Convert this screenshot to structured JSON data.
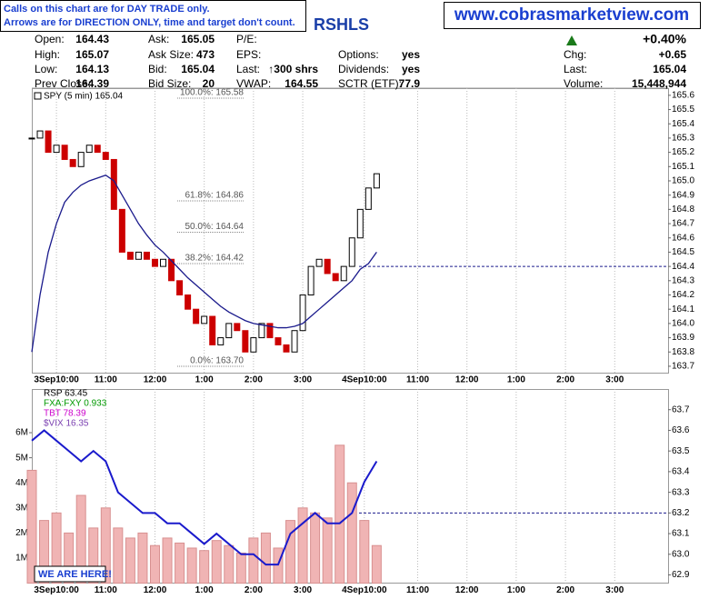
{
  "header": {
    "notice": [
      "Calls on this chart are for DAY TRADE only.",
      "Arrows are for DIRECTION ONLY, time and target don't count."
    ],
    "website": "www.cobrasmarketview.com",
    "title": "RSHLS",
    "change_pct": "+0.40%",
    "columns": [
      [
        [
          "Open:",
          "164.43"
        ],
        [
          "High:",
          "165.07"
        ],
        [
          "Low:",
          "164.13"
        ],
        [
          "Prev Close:",
          "164.39"
        ]
      ],
      [
        [
          "Ask:",
          "165.05"
        ],
        [
          "Ask Size:",
          "473"
        ],
        [
          "Bid:",
          "165.04"
        ],
        [
          "Bid Size:",
          "20"
        ]
      ],
      [
        [
          "P/E:"
        ],
        [
          "EPS:"
        ],
        [
          "Last:",
          "↑300 shrs"
        ],
        [
          "VWAP:",
          "164.55"
        ]
      ],
      [
        null,
        [
          "Options:",
          "yes"
        ],
        [
          "Dividends:",
          "yes"
        ],
        [
          "SCTR (ETF):",
          "77.9"
        ]
      ],
      [
        null,
        [
          "Chg:",
          "+0.65"
        ],
        [
          "Last:",
          "165.04"
        ],
        [
          "Volume:",
          "15,448,944"
        ]
      ]
    ]
  },
  "chart_data": [
    {
      "type": "candlestick",
      "legend": "SPY (5 min) 165.04",
      "x": [
        0,
        2,
        4,
        6,
        8,
        10,
        12,
        14,
        16,
        18,
        20,
        22,
        24,
        26,
        28,
        30,
        32,
        34,
        36,
        38,
        40,
        42,
        44,
        46,
        48,
        50,
        52,
        54,
        56,
        58,
        60,
        62,
        64,
        66,
        68,
        70,
        72,
        74,
        76,
        78,
        80,
        82,
        84
      ],
      "values": [
        165.3,
        165.35,
        165.2,
        165.25,
        165.15,
        165.1,
        165.2,
        165.25,
        165.2,
        165.15,
        164.8,
        164.5,
        164.45,
        164.5,
        164.45,
        164.4,
        164.45,
        164.3,
        164.2,
        164.1,
        164.0,
        164.05,
        163.85,
        163.9,
        164.0,
        163.95,
        163.8,
        163.9,
        164.0,
        163.9,
        163.85,
        163.8,
        163.95,
        164.2,
        164.4,
        164.45,
        164.35,
        164.3,
        164.4,
        164.6,
        164.8,
        164.95,
        165.05
      ],
      "up_color": "#000000",
      "down_color": "#cc0000",
      "moving_average": {
        "color": "#1a1a8c",
        "values": [
          163.8,
          164.2,
          164.5,
          164.7,
          164.85,
          164.92,
          164.97,
          165.0,
          165.02,
          165.04,
          165.0,
          164.9,
          164.8,
          164.7,
          164.62,
          164.55,
          164.5,
          164.44,
          164.38,
          164.32,
          164.27,
          164.22,
          164.17,
          164.12,
          164.08,
          164.05,
          164.02,
          164.0,
          163.99,
          163.98,
          163.97,
          163.97,
          163.98,
          164.0,
          164.05,
          164.1,
          164.15,
          164.2,
          164.25,
          164.3,
          164.38,
          164.42,
          164.5
        ]
      },
      "retracements": [
        {
          "value": 165.58,
          "label": "100.0%: 165.58"
        },
        {
          "value": 164.86,
          "label": "61.8%: 164.86"
        },
        {
          "value": 164.64,
          "label": "50.0%: 164.64"
        },
        {
          "value": 164.42,
          "label": "38.2%: 164.42"
        },
        {
          "value": 163.7,
          "label": "0.0%: 163.70"
        }
      ],
      "reference_line": 164.4,
      "reference_color": "#1a1a8c",
      "xlim": [
        0,
        155
      ],
      "ylim": [
        163.655,
        165.65
      ],
      "yticks": [
        163.7,
        163.8,
        163.9,
        {
          "value": 164.0,
          "label": "164.0"
        },
        164.1,
        164.2,
        164.3,
        164.4,
        164.5,
        164.6,
        164.7,
        164.8,
        164.9,
        {
          "value": 165.0,
          "label": "165.0"
        },
        165.1,
        165.2,
        165.3,
        165.4,
        165.5,
        165.6
      ],
      "xticks": [
        {
          "value": 6,
          "label": "3Sep10:00"
        },
        {
          "value": 18,
          "label": "11:00"
        },
        {
          "value": 30,
          "label": "12:00"
        },
        {
          "value": 42,
          "label": "1:00"
        },
        {
          "value": 54,
          "label": "2:00"
        },
        {
          "value": 66,
          "label": "3:00"
        },
        {
          "value": 81,
          "label": "4Sep10:00"
        },
        {
          "value": 94,
          "label": "11:00"
        },
        {
          "value": 106,
          "label": "12:00"
        },
        {
          "value": 118,
          "label": "1:00"
        },
        {
          "value": 130,
          "label": "2:00"
        },
        {
          "value": 142,
          "label": "3:00"
        }
      ]
    },
    {
      "type": "line",
      "series": [
        {
          "name": "RSP 63.45",
          "color": "#1a1acc",
          "axis": "y2",
          "values": [
            63.55,
            63.6,
            63.55,
            63.5,
            63.45,
            63.5,
            63.45,
            63.3,
            63.25,
            63.2,
            63.2,
            63.15,
            63.15,
            63.1,
            63.05,
            63.1,
            63.05,
            63.0,
            63.0,
            62.95,
            62.95,
            63.1,
            63.15,
            63.2,
            63.15,
            63.15,
            63.2,
            63.35,
            63.45
          ]
        }
      ],
      "overlays": [
        {
          "name": "FXA:FXY 0.933",
          "color": "#009900"
        },
        {
          "name": "TBT 78.39",
          "color": "#cc00cc"
        },
        {
          "name": "$VIX 16.35",
          "color": "#7a3fb0"
        }
      ],
      "x": [
        0,
        3,
        6,
        9,
        12,
        15,
        18,
        21,
        24,
        27,
        30,
        33,
        36,
        39,
        42,
        45,
        48,
        51,
        54,
        57,
        60,
        63,
        66,
        69,
        72,
        75,
        78,
        81,
        84
      ],
      "volume": {
        "color": "#f0b4b4",
        "values": [
          4500000,
          2500000,
          2800000,
          2000000,
          3500000,
          2200000,
          3000000,
          2200000,
          1800000,
          2000000,
          1500000,
          1800000,
          1600000,
          1400000,
          1300000,
          1700000,
          1500000,
          1200000,
          1800000,
          2000000,
          1400000,
          2500000,
          3000000,
          2800000,
          2600000,
          5500000,
          4000000,
          2500000,
          1500000
        ]
      },
      "annotation": "WE ARE HERE!",
      "reference_line": 63.2,
      "reference_color": "#1a1a8c",
      "xlim": [
        0,
        155
      ],
      "ylim": [
        0,
        7740000
      ],
      "y2lim": [
        62.86,
        63.8
      ],
      "yticks": [
        {
          "value": 1000000,
          "label": "1M"
        },
        {
          "value": 2000000,
          "label": "2M"
        },
        {
          "value": 3000000,
          "label": "3M"
        },
        {
          "value": 4000000,
          "label": "4M"
        },
        {
          "value": 5000000,
          "label": "5M"
        },
        {
          "value": 6000000,
          "label": "6M"
        }
      ],
      "y2ticks": [
        62.9,
        {
          "value": 63.0,
          "label": "63.0"
        },
        63.1,
        63.2,
        63.3,
        63.4,
        63.5,
        63.6,
        63.7
      ],
      "xticks": [
        {
          "value": 6,
          "label": "3Sep10:00"
        },
        {
          "value": 18,
          "label": "11:00"
        },
        {
          "value": 30,
          "label": "12:00"
        },
        {
          "value": 42,
          "label": "1:00"
        },
        {
          "value": 54,
          "label": "2:00"
        },
        {
          "value": 66,
          "label": "3:00"
        },
        {
          "value": 81,
          "label": "4Sep10:00"
        },
        {
          "value": 94,
          "label": "11:00"
        },
        {
          "value": 106,
          "label": "12:00"
        },
        {
          "value": 118,
          "label": "1:00"
        },
        {
          "value": 130,
          "label": "2:00"
        },
        {
          "value": 142,
          "label": "3:00"
        }
      ]
    }
  ]
}
